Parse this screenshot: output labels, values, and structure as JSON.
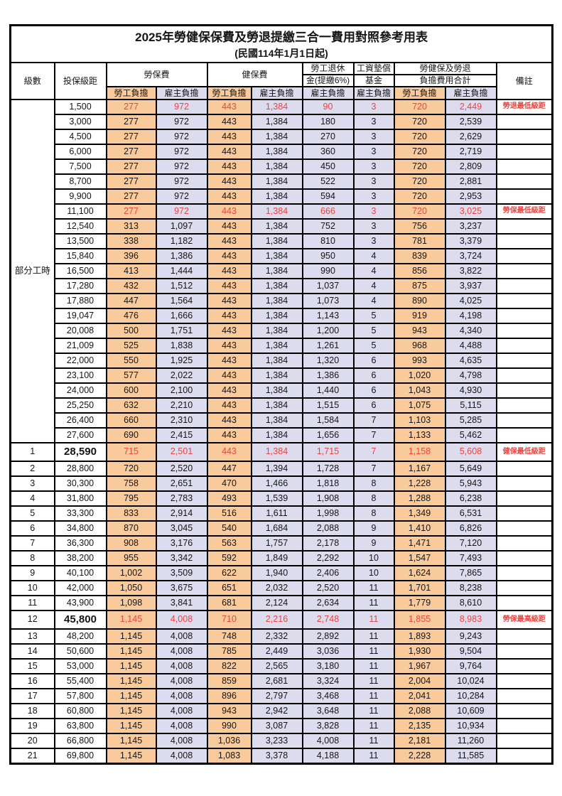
{
  "title": {
    "main": "2025年勞健保保費及勞退提繳三合一費用對照參考用表",
    "sub": "(民國114年1月1日起)"
  },
  "header": {
    "level": "級數",
    "salary": "投保級距",
    "labor_fee": "勞保費",
    "health_fee": "健保費",
    "pension_line1": "勞工退休",
    "pension_line2": "金(提繳6%)",
    "wage_fund_line1": "工資墊償",
    "wage_fund_line2": "基金",
    "total_line1": "勞健保及勞退",
    "total_line2": "負擔費用合計",
    "remark": "備註",
    "self_label": "勞工負擔",
    "employer_label": "雇主負擔"
  },
  "part_time_section": {
    "label": "部分工時"
  },
  "colors": {
    "employee_col_bg": "#f9cb9c",
    "employer_col_bg": "#dcdcee",
    "highlight_red": "#ea4440",
    "border": "#000000",
    "background": "#ffffff"
  },
  "rows": [
    {
      "level": "",
      "salary": "1,500",
      "values": [
        "277",
        "972",
        "443",
        "1,384",
        "90",
        "3",
        "720",
        "2,449"
      ],
      "remark": "勞退最低級距",
      "red": true,
      "special": false
    },
    {
      "level": "",
      "salary": "3,000",
      "values": [
        "277",
        "972",
        "443",
        "1,384",
        "180",
        "3",
        "720",
        "2,539"
      ],
      "remark": "",
      "red": false,
      "special": false
    },
    {
      "level": "",
      "salary": "4,500",
      "values": [
        "277",
        "972",
        "443",
        "1,384",
        "270",
        "3",
        "720",
        "2,629"
      ],
      "remark": "",
      "red": false,
      "special": false
    },
    {
      "level": "",
      "salary": "6,000",
      "values": [
        "277",
        "972",
        "443",
        "1,384",
        "360",
        "3",
        "720",
        "2,719"
      ],
      "remark": "",
      "red": false,
      "special": false
    },
    {
      "level": "",
      "salary": "7,500",
      "values": [
        "277",
        "972",
        "443",
        "1,384",
        "450",
        "3",
        "720",
        "2,809"
      ],
      "remark": "",
      "red": false,
      "special": false
    },
    {
      "level": "",
      "salary": "8,700",
      "values": [
        "277",
        "972",
        "443",
        "1,384",
        "522",
        "3",
        "720",
        "2,881"
      ],
      "remark": "",
      "red": false,
      "special": false
    },
    {
      "level": "",
      "salary": "9,900",
      "values": [
        "277",
        "972",
        "443",
        "1,384",
        "594",
        "3",
        "720",
        "2,953"
      ],
      "remark": "",
      "red": false,
      "special": false
    },
    {
      "level": "",
      "salary": "11,100",
      "values": [
        "277",
        "972",
        "443",
        "1,384",
        "666",
        "3",
        "720",
        "3,025"
      ],
      "remark": "勞保最低級距",
      "red": true,
      "special": false
    },
    {
      "level": "",
      "salary": "12,540",
      "values": [
        "313",
        "1,097",
        "443",
        "1,384",
        "752",
        "3",
        "756",
        "3,237"
      ],
      "remark": "",
      "red": false,
      "special": false
    },
    {
      "level": "",
      "salary": "13,500",
      "values": [
        "338",
        "1,182",
        "443",
        "1,384",
        "810",
        "3",
        "781",
        "3,379"
      ],
      "remark": "",
      "red": false,
      "special": false
    },
    {
      "level": "",
      "salary": "15,840",
      "values": [
        "396",
        "1,386",
        "443",
        "1,384",
        "950",
        "4",
        "839",
        "3,724"
      ],
      "remark": "",
      "red": false,
      "special": false
    },
    {
      "level": "",
      "salary": "16,500",
      "values": [
        "413",
        "1,444",
        "443",
        "1,384",
        "990",
        "4",
        "856",
        "3,822"
      ],
      "remark": "",
      "red": false,
      "special": false
    },
    {
      "level": "",
      "salary": "17,280",
      "values": [
        "432",
        "1,512",
        "443",
        "1,384",
        "1,037",
        "4",
        "875",
        "3,937"
      ],
      "remark": "",
      "red": false,
      "special": false
    },
    {
      "level": "",
      "salary": "17,880",
      "values": [
        "447",
        "1,564",
        "443",
        "1,384",
        "1,073",
        "4",
        "890",
        "4,025"
      ],
      "remark": "",
      "red": false,
      "special": false
    },
    {
      "level": "",
      "salary": "19,047",
      "values": [
        "476",
        "1,666",
        "443",
        "1,384",
        "1,143",
        "5",
        "919",
        "4,198"
      ],
      "remark": "",
      "red": false,
      "special": false
    },
    {
      "level": "",
      "salary": "20,008",
      "values": [
        "500",
        "1,751",
        "443",
        "1,384",
        "1,200",
        "5",
        "943",
        "4,340"
      ],
      "remark": "",
      "red": false,
      "special": false
    },
    {
      "level": "",
      "salary": "21,009",
      "values": [
        "525",
        "1,838",
        "443",
        "1,384",
        "1,261",
        "5",
        "968",
        "4,488"
      ],
      "remark": "",
      "red": false,
      "special": false
    },
    {
      "level": "",
      "salary": "22,000",
      "values": [
        "550",
        "1,925",
        "443",
        "1,384",
        "1,320",
        "6",
        "993",
        "4,635"
      ],
      "remark": "",
      "red": false,
      "special": false
    },
    {
      "level": "",
      "salary": "23,100",
      "values": [
        "577",
        "2,022",
        "443",
        "1,384",
        "1,386",
        "6",
        "1,020",
        "4,798"
      ],
      "remark": "",
      "red": false,
      "special": false
    },
    {
      "level": "",
      "salary": "24,000",
      "values": [
        "600",
        "2,100",
        "443",
        "1,384",
        "1,440",
        "6",
        "1,043",
        "4,930"
      ],
      "remark": "",
      "red": false,
      "special": false
    },
    {
      "level": "",
      "salary": "25,250",
      "values": [
        "632",
        "2,210",
        "443",
        "1,384",
        "1,515",
        "6",
        "1,075",
        "5,115"
      ],
      "remark": "",
      "red": false,
      "special": false
    },
    {
      "level": "",
      "salary": "26,400",
      "values": [
        "660",
        "2,310",
        "443",
        "1,384",
        "1,584",
        "7",
        "1,103",
        "5,285"
      ],
      "remark": "",
      "red": false,
      "special": false
    },
    {
      "level": "",
      "salary": "27,600",
      "values": [
        "690",
        "2,415",
        "443",
        "1,384",
        "1,656",
        "7",
        "1,133",
        "5,462"
      ],
      "remark": "",
      "red": false,
      "special": false
    },
    {
      "level": "1",
      "salary": "28,590",
      "values": [
        "715",
        "2,501",
        "443",
        "1,384",
        "1,715",
        "7",
        "1,158",
        "5,608"
      ],
      "remark": "健保最低級距",
      "red": true,
      "special": true
    },
    {
      "level": "2",
      "salary": "28,800",
      "values": [
        "720",
        "2,520",
        "447",
        "1,394",
        "1,728",
        "7",
        "1,167",
        "5,649"
      ],
      "remark": "",
      "red": false,
      "special": false
    },
    {
      "level": "3",
      "salary": "30,300",
      "values": [
        "758",
        "2,651",
        "470",
        "1,466",
        "1,818",
        "8",
        "1,228",
        "5,943"
      ],
      "remark": "",
      "red": false,
      "special": false
    },
    {
      "level": "4",
      "salary": "31,800",
      "values": [
        "795",
        "2,783",
        "493",
        "1,539",
        "1,908",
        "8",
        "1,288",
        "6,238"
      ],
      "remark": "",
      "red": false,
      "special": false
    },
    {
      "level": "5",
      "salary": "33,300",
      "values": [
        "833",
        "2,914",
        "516",
        "1,611",
        "1,998",
        "8",
        "1,349",
        "6,531"
      ],
      "remark": "",
      "red": false,
      "special": false
    },
    {
      "level": "6",
      "salary": "34,800",
      "values": [
        "870",
        "3,045",
        "540",
        "1,684",
        "2,088",
        "9",
        "1,410",
        "6,826"
      ],
      "remark": "",
      "red": false,
      "special": false
    },
    {
      "level": "7",
      "salary": "36,300",
      "values": [
        "908",
        "3,176",
        "563",
        "1,757",
        "2,178",
        "9",
        "1,471",
        "7,120"
      ],
      "remark": "",
      "red": false,
      "special": false
    },
    {
      "level": "8",
      "salary": "38,200",
      "values": [
        "955",
        "3,342",
        "592",
        "1,849",
        "2,292",
        "10",
        "1,547",
        "7,493"
      ],
      "remark": "",
      "red": false,
      "special": false
    },
    {
      "level": "9",
      "salary": "40,100",
      "values": [
        "1,002",
        "3,509",
        "622",
        "1,940",
        "2,406",
        "10",
        "1,624",
        "7,865"
      ],
      "remark": "",
      "red": false,
      "special": false
    },
    {
      "level": "10",
      "salary": "42,000",
      "values": [
        "1,050",
        "3,675",
        "651",
        "2,032",
        "2,520",
        "11",
        "1,701",
        "8,238"
      ],
      "remark": "",
      "red": false,
      "special": false
    },
    {
      "level": "11",
      "salary": "43,900",
      "values": [
        "1,098",
        "3,841",
        "681",
        "2,124",
        "2,634",
        "11",
        "1,779",
        "8,610"
      ],
      "remark": "",
      "red": false,
      "special": false
    },
    {
      "level": "12",
      "salary": "45,800",
      "values": [
        "1,145",
        "4,008",
        "710",
        "2,216",
        "2,748",
        "11",
        "1,855",
        "8,983"
      ],
      "remark": "勞保最高級距",
      "red": true,
      "special": true
    },
    {
      "level": "13",
      "salary": "48,200",
      "values": [
        "1,145",
        "4,008",
        "748",
        "2,332",
        "2,892",
        "11",
        "1,893",
        "9,243"
      ],
      "remark": "",
      "red": false,
      "special": false
    },
    {
      "level": "14",
      "salary": "50,600",
      "values": [
        "1,145",
        "4,008",
        "785",
        "2,449",
        "3,036",
        "11",
        "1,930",
        "9,504"
      ],
      "remark": "",
      "red": false,
      "special": false
    },
    {
      "level": "15",
      "salary": "53,000",
      "values": [
        "1,145",
        "4,008",
        "822",
        "2,565",
        "3,180",
        "11",
        "1,967",
        "9,764"
      ],
      "remark": "",
      "red": false,
      "special": false
    },
    {
      "level": "16",
      "salary": "55,400",
      "values": [
        "1,145",
        "4,008",
        "859",
        "2,681",
        "3,324",
        "11",
        "2,004",
        "10,024"
      ],
      "remark": "",
      "red": false,
      "special": false
    },
    {
      "level": "17",
      "salary": "57,800",
      "values": [
        "1,145",
        "4,008",
        "896",
        "2,797",
        "3,468",
        "11",
        "2,041",
        "10,284"
      ],
      "remark": "",
      "red": false,
      "special": false
    },
    {
      "level": "18",
      "salary": "60,800",
      "values": [
        "1,145",
        "4,008",
        "943",
        "2,942",
        "3,648",
        "11",
        "2,088",
        "10,609"
      ],
      "remark": "",
      "red": false,
      "special": false
    },
    {
      "level": "19",
      "salary": "63,800",
      "values": [
        "1,145",
        "4,008",
        "990",
        "3,087",
        "3,828",
        "11",
        "2,135",
        "10,934"
      ],
      "remark": "",
      "red": false,
      "special": false
    },
    {
      "level": "20",
      "salary": "66,800",
      "values": [
        "1,145",
        "4,008",
        "1,036",
        "3,233",
        "4,008",
        "11",
        "2,181",
        "11,260"
      ],
      "remark": "",
      "red": false,
      "special": false
    },
    {
      "level": "21",
      "salary": "69,800",
      "values": [
        "1,145",
        "4,008",
        "1,083",
        "3,378",
        "4,188",
        "11",
        "2,228",
        "11,585"
      ],
      "remark": "",
      "red": false,
      "special": false
    }
  ]
}
